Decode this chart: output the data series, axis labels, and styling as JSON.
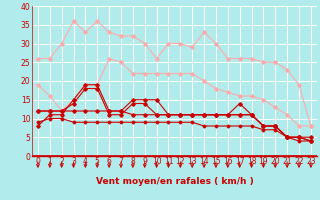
{
  "xlabel": "Vent moyen/en rafales ( km/h )",
  "bg_color": "#b2ebeb",
  "grid_color": "#ffffff",
  "xlim": [
    -0.5,
    23.5
  ],
  "ylim": [
    0,
    40
  ],
  "yticks": [
    0,
    5,
    10,
    15,
    20,
    25,
    30,
    35,
    40
  ],
  "xticks": [
    0,
    1,
    2,
    3,
    4,
    5,
    6,
    7,
    8,
    9,
    10,
    11,
    12,
    13,
    14,
    15,
    16,
    17,
    18,
    19,
    20,
    21,
    22,
    23
  ],
  "series": [
    {
      "x": [
        0,
        1,
        2,
        3,
        4,
        5,
        6,
        7,
        8,
        9,
        10,
        11,
        12,
        13,
        14,
        15,
        16,
        17,
        18,
        19,
        20,
        21,
        22,
        23
      ],
      "y": [
        26,
        26,
        30,
        36,
        33,
        36,
        33,
        32,
        32,
        30,
        26,
        30,
        30,
        29,
        33,
        30,
        26,
        26,
        26,
        25,
        25,
        23,
        19,
        8
      ],
      "color": "#ffaaaa",
      "linewidth": 0.8,
      "marker": "D",
      "markersize": 1.8,
      "zorder": 2
    },
    {
      "x": [
        0,
        1,
        2,
        3,
        4,
        5,
        6,
        7,
        8,
        9,
        10,
        11,
        12,
        13,
        14,
        15,
        16,
        17,
        18,
        19,
        20,
        21,
        22,
        23
      ],
      "y": [
        19,
        16,
        12,
        15,
        19,
        19,
        26,
        25,
        22,
        22,
        22,
        22,
        22,
        22,
        20,
        18,
        17,
        16,
        16,
        15,
        13,
        11,
        8,
        8
      ],
      "color": "#ffaaaa",
      "linewidth": 0.8,
      "marker": "D",
      "markersize": 1.8,
      "zorder": 2
    },
    {
      "x": [
        0,
        1,
        2,
        3,
        4,
        5,
        6,
        7,
        8,
        9,
        10,
        11,
        12,
        13,
        14,
        15,
        16,
        17,
        18,
        19,
        20,
        21,
        22,
        23
      ],
      "y": [
        8,
        11,
        11,
        15,
        19,
        19,
        12,
        12,
        15,
        15,
        15,
        11,
        11,
        11,
        11,
        11,
        11,
        11,
        11,
        8,
        8,
        5,
        5,
        5
      ],
      "color": "#cc0000",
      "linewidth": 0.8,
      "marker": "D",
      "markersize": 1.8,
      "zorder": 3
    },
    {
      "x": [
        0,
        1,
        2,
        3,
        4,
        5,
        6,
        7,
        8,
        9,
        10,
        11,
        12,
        13,
        14,
        15,
        16,
        17,
        18,
        19,
        20,
        21,
        22,
        23
      ],
      "y": [
        12,
        12,
        12,
        14,
        18,
        18,
        11,
        11,
        14,
        14,
        11,
        11,
        11,
        11,
        11,
        11,
        11,
        14,
        11,
        8,
        8,
        5,
        5,
        4
      ],
      "color": "#cc0000",
      "linewidth": 0.8,
      "marker": "D",
      "markersize": 1.8,
      "zorder": 3
    },
    {
      "x": [
        0,
        1,
        2,
        3,
        4,
        5,
        6,
        7,
        8,
        9,
        10,
        11,
        12,
        13,
        14,
        15,
        16,
        17,
        18,
        19,
        20,
        21,
        22,
        23
      ],
      "y": [
        12,
        12,
        12,
        12,
        12,
        12,
        12,
        12,
        11,
        11,
        11,
        11,
        11,
        11,
        11,
        11,
        11,
        11,
        11,
        8,
        8,
        5,
        5,
        4
      ],
      "color": "#cc0000",
      "linewidth": 0.8,
      "marker": "D",
      "markersize": 1.8,
      "zorder": 3
    },
    {
      "x": [
        0,
        1,
        2,
        3,
        4,
        5,
        6,
        7,
        8,
        9,
        10,
        11,
        12,
        13,
        14,
        15,
        16,
        17,
        18,
        19,
        20,
        21,
        22,
        23
      ],
      "y": [
        9,
        10,
        10,
        9,
        9,
        9,
        9,
        9,
        9,
        9,
        9,
        9,
        9,
        9,
        8,
        8,
        8,
        8,
        8,
        7,
        7,
        5,
        4,
        4
      ],
      "color": "#cc0000",
      "linewidth": 0.8,
      "marker": "D",
      "markersize": 1.5,
      "zorder": 3
    }
  ],
  "arrow_color": "#cc0000",
  "tick_fontsize": 5.5,
  "xlabel_fontsize": 6.5
}
